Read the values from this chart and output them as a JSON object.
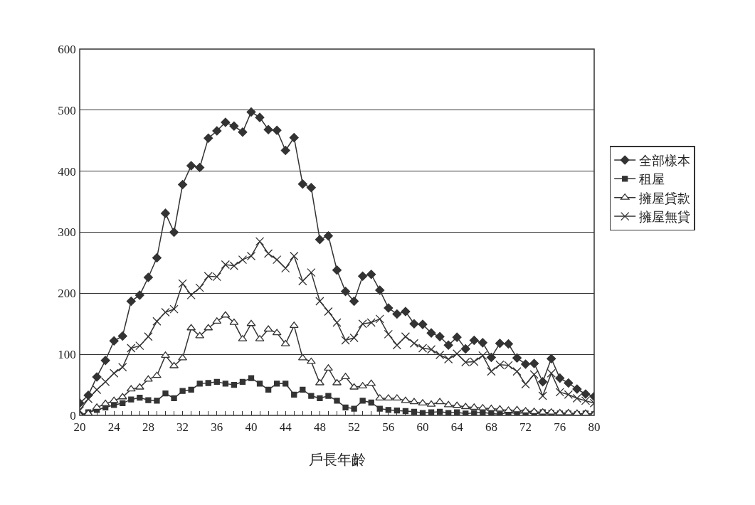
{
  "chart_data": {
    "type": "line",
    "xlabel": "戶長年齡",
    "x": [
      20,
      21,
      22,
      23,
      24,
      25,
      26,
      27,
      28,
      29,
      30,
      31,
      32,
      33,
      34,
      35,
      36,
      37,
      38,
      39,
      40,
      41,
      42,
      43,
      44,
      45,
      46,
      47,
      48,
      49,
      50,
      51,
      52,
      53,
      54,
      55,
      56,
      57,
      58,
      59,
      60,
      61,
      62,
      63,
      64,
      65,
      66,
      67,
      68,
      69,
      70,
      71,
      72,
      73,
      74,
      75,
      76,
      77,
      78,
      79,
      80
    ],
    "series": [
      {
        "name": "全部樣本",
        "color": "#333333",
        "marker": "diamond",
        "values": [
          20,
          33,
          63,
          90,
          122,
          130,
          187,
          197,
          226,
          258,
          331,
          300,
          378,
          409,
          406,
          454,
          466,
          480,
          474,
          464,
          497,
          488,
          468,
          467,
          434,
          455,
          379,
          373,
          288,
          294,
          238,
          203,
          187,
          228,
          231,
          205,
          176,
          166,
          170,
          150,
          149,
          135,
          129,
          115,
          128,
          109,
          123,
          119,
          95,
          118,
          117,
          94,
          84,
          85,
          55,
          93,
          61,
          53,
          43,
          35,
          31
        ]
      },
      {
        "name": "租屋",
        "color": "#333333",
        "marker": "square",
        "values": [
          0,
          5,
          9,
          13,
          17,
          20,
          26,
          29,
          25,
          24,
          36,
          28,
          40,
          42,
          52,
          53,
          55,
          52,
          50,
          55,
          61,
          52,
          42,
          52,
          52,
          34,
          42,
          32,
          28,
          32,
          24,
          13,
          11,
          24,
          21,
          11,
          9,
          8,
          7,
          6,
          4,
          5,
          6,
          4,
          5,
          3,
          4,
          5,
          3,
          2,
          5,
          3,
          5,
          4,
          5,
          4,
          3,
          3,
          2,
          3,
          2
        ]
      },
      {
        "name": "擁屋貸款",
        "color": "#333333",
        "marker": "triangle",
        "values": [
          1,
          3,
          13,
          19,
          24,
          30,
          43,
          46,
          59,
          65,
          98,
          81,
          94,
          143,
          130,
          143,
          154,
          164,
          152,
          125,
          150,
          125,
          141,
          135,
          117,
          147,
          94,
          88,
          53,
          77,
          53,
          63,
          46,
          48,
          52,
          28,
          28,
          28,
          24,
          22,
          20,
          18,
          22,
          17,
          16,
          14,
          13,
          12,
          11,
          10,
          8,
          9,
          7,
          6,
          5,
          5,
          4,
          4,
          3,
          3,
          2
        ]
      },
      {
        "name": "擁屋無貸",
        "color": "#333333",
        "marker": "cross",
        "values": [
          8,
          27,
          42,
          55,
          69,
          79,
          110,
          114,
          129,
          154,
          169,
          174,
          216,
          197,
          209,
          228,
          227,
          247,
          245,
          255,
          261,
          285,
          265,
          255,
          241,
          261,
          220,
          234,
          187,
          170,
          152,
          123,
          127,
          150,
          152,
          158,
          133,
          115,
          129,
          118,
          110,
          108,
          99,
          92,
          101,
          87,
          88,
          98,
          72,
          83,
          82,
          72,
          51,
          67,
          32,
          69,
          38,
          34,
          28,
          24,
          20
        ]
      }
    ],
    "xlim": [
      20,
      80
    ],
    "xticks": [
      20,
      24,
      28,
      32,
      36,
      40,
      44,
      48,
      52,
      56,
      60,
      64,
      68,
      72,
      76,
      80
    ],
    "ylim": [
      0,
      600
    ],
    "yticks": [
      0,
      100,
      200,
      300,
      400,
      500,
      600
    ],
    "grid": "y",
    "legend": "right",
    "line_style": "solid"
  }
}
